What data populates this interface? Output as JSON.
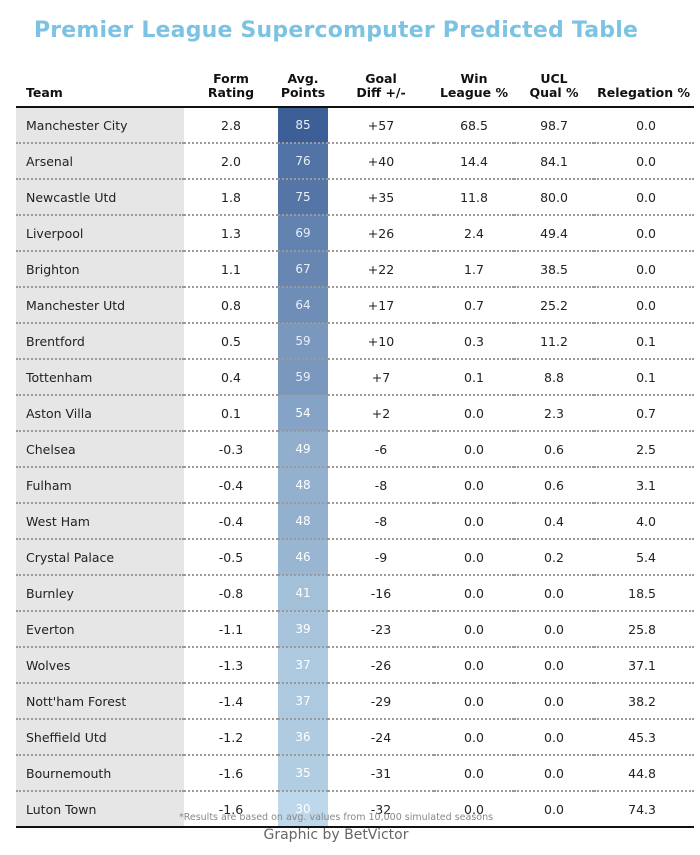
{
  "title": "Premier League Supercomputer Predicted Table",
  "footnote": "*Results are based on avg. values from 10,000 simulated seasons",
  "credit": "Graphic by BetVictor",
  "colors": {
    "title": "#7cc3e3",
    "points_dark": "#3d5f97",
    "points_light": "#bdd8ea",
    "team_bg": "#e6e6e6"
  },
  "chart_data": {
    "type": "table",
    "columns": [
      "Team",
      "Form Rating",
      "Avg. Points",
      "Goal Diff +/-",
      "Win League %",
      "UCL Qual %",
      "Relegation %"
    ],
    "header_lines": [
      [
        "",
        "Team"
      ],
      [
        "Form",
        "Rating"
      ],
      [
        "Avg.",
        "Points"
      ],
      [
        "Goal",
        "Diff +/-"
      ],
      [
        "Win",
        "League %"
      ],
      [
        "UCL",
        "Qual %"
      ],
      [
        "",
        "Relegation %"
      ]
    ],
    "rows": [
      [
        "Manchester City",
        "2.8",
        "85",
        "+57",
        "68.5",
        "98.7",
        "0.0"
      ],
      [
        "Arsenal",
        "2.0",
        "76",
        "+40",
        "14.4",
        "84.1",
        "0.0"
      ],
      [
        "Newcastle Utd",
        "1.8",
        "75",
        "+35",
        "11.8",
        "80.0",
        "0.0"
      ],
      [
        "Liverpool",
        "1.3",
        "69",
        "+26",
        "2.4",
        "49.4",
        "0.0"
      ],
      [
        "Brighton",
        "1.1",
        "67",
        "+22",
        "1.7",
        "38.5",
        "0.0"
      ],
      [
        "Manchester Utd",
        "0.8",
        "64",
        "+17",
        "0.7",
        "25.2",
        "0.0"
      ],
      [
        "Brentford",
        "0.5",
        "59",
        "+10",
        "0.3",
        "11.2",
        "0.1"
      ],
      [
        "Tottenham",
        "0.4",
        "59",
        "+7",
        "0.1",
        "8.8",
        "0.1"
      ],
      [
        "Aston Villa",
        "0.1",
        "54",
        "+2",
        "0.0",
        "2.3",
        "0.7"
      ],
      [
        "Chelsea",
        "-0.3",
        "49",
        "-6",
        "0.0",
        "0.6",
        "2.5"
      ],
      [
        "Fulham",
        "-0.4",
        "48",
        "-8",
        "0.0",
        "0.6",
        "3.1"
      ],
      [
        "West Ham",
        "-0.4",
        "48",
        "-8",
        "0.0",
        "0.4",
        "4.0"
      ],
      [
        "Crystal Palace",
        "-0.5",
        "46",
        "-9",
        "0.0",
        "0.2",
        "5.4"
      ],
      [
        "Burnley",
        "-0.8",
        "41",
        "-16",
        "0.0",
        "0.0",
        "18.5"
      ],
      [
        "Everton",
        "-1.1",
        "39",
        "-23",
        "0.0",
        "0.0",
        "25.8"
      ],
      [
        "Wolves",
        "-1.3",
        "37",
        "-26",
        "0.0",
        "0.0",
        "37.1"
      ],
      [
        "Nott'ham Forest",
        "-1.4",
        "37",
        "-29",
        "0.0",
        "0.0",
        "38.2"
      ],
      [
        "Sheffield Utd",
        "-1.2",
        "36",
        "-24",
        "0.0",
        "0.0",
        "45.3"
      ],
      [
        "Bournemouth",
        "-1.6",
        "35",
        "-31",
        "0.0",
        "0.0",
        "44.8"
      ],
      [
        "Luton Town",
        "-1.6",
        "30",
        "-32",
        "0.0",
        "0.0",
        "74.3"
      ]
    ]
  }
}
